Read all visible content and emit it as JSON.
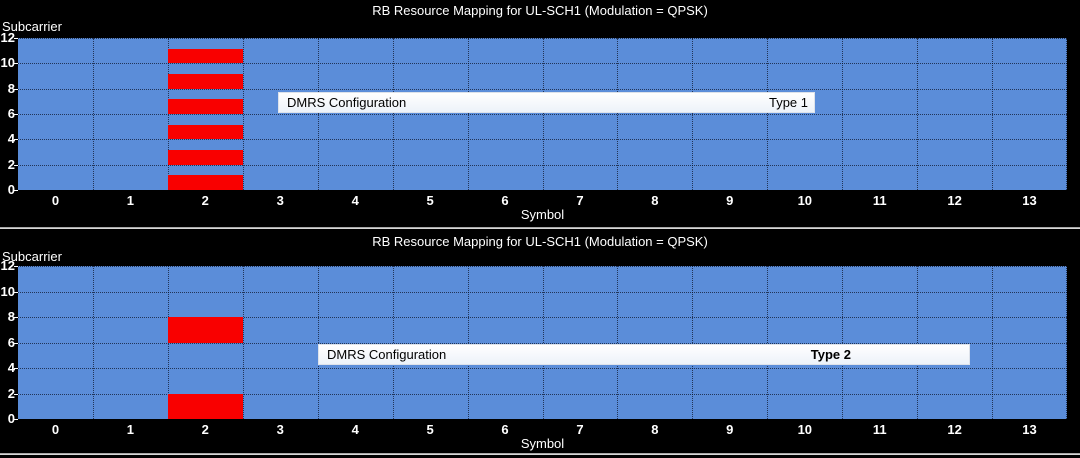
{
  "colors": {
    "background": "#000000",
    "resource_grid_fill": "#5b8dd9",
    "dmrs_fill": "#ff0000",
    "axis_text": "#ffffff",
    "annotation_background": "#f5f8fc",
    "annotation_text": "#000000"
  },
  "chart_data": [
    {
      "type": "heatmap",
      "title": "RB Resource Mapping for UL-SCH1 (Modulation = QPSK)",
      "xlabel": "Symbol",
      "ylabel": "Subcarrier",
      "x_ticks": [
        0,
        1,
        2,
        3,
        4,
        5,
        6,
        7,
        8,
        9,
        10,
        11,
        12,
        13
      ],
      "y_ticks": [
        0,
        2,
        4,
        6,
        8,
        10,
        12
      ],
      "xlim": [
        -0.5,
        13.5
      ],
      "ylim": [
        0,
        12
      ],
      "grid": true,
      "legend_colors": {
        "data": "#5b8dd9",
        "dmrs": "#ff0000"
      },
      "annotation": {
        "label": "DMRS Configuration",
        "value": "Type 1"
      },
      "dmrs": {
        "symbol": 2,
        "subcarriers": [
          0,
          2,
          4,
          6,
          8,
          10
        ]
      }
    },
    {
      "type": "heatmap",
      "title": "RB Resource Mapping for UL-SCH1 (Modulation = QPSK)",
      "xlabel": "Symbol",
      "ylabel": "Subcarrier",
      "x_ticks": [
        0,
        1,
        2,
        3,
        4,
        5,
        6,
        7,
        8,
        9,
        10,
        11,
        12,
        13
      ],
      "y_ticks": [
        0,
        2,
        4,
        6,
        8,
        10,
        12
      ],
      "xlim": [
        -0.5,
        13.5
      ],
      "ylim": [
        0,
        12
      ],
      "grid": true,
      "legend_colors": {
        "data": "#5b8dd9",
        "dmrs": "#ff0000"
      },
      "annotation": {
        "label": "DMRS Configuration",
        "value": "Type 2"
      },
      "dmrs": {
        "symbol": 2,
        "subcarriers": [
          0,
          1,
          6,
          7
        ]
      }
    }
  ]
}
